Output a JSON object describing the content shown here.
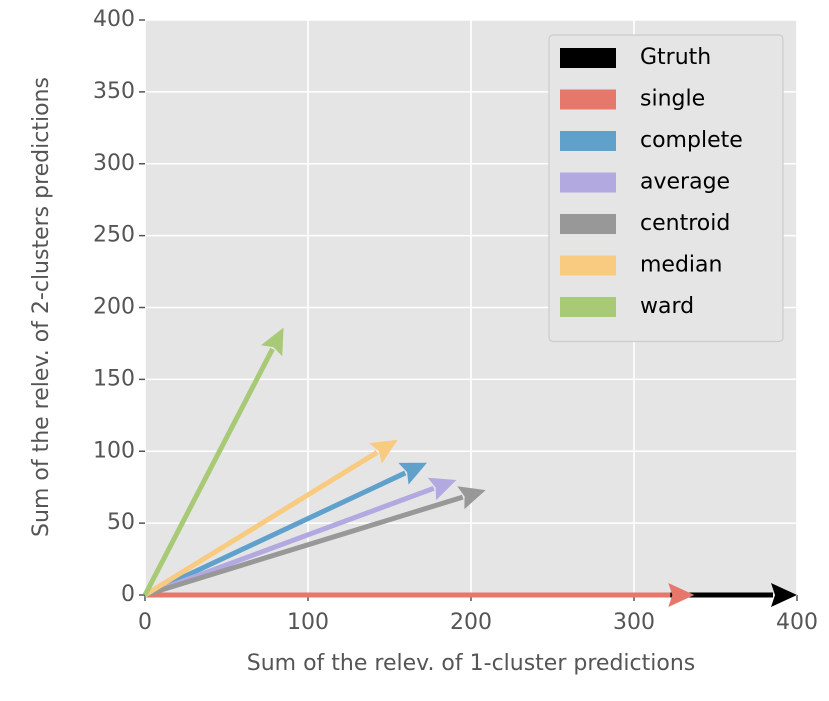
{
  "chart_data": {
    "type": "quiver",
    "xlabel": "Sum of the relev. of 1-cluster predictions",
    "ylabel": "Sum of the relev. of 2-clusters predictions",
    "xlim": [
      0,
      400
    ],
    "ylim": [
      0,
      400
    ],
    "xticks": [
      0,
      100,
      200,
      300,
      400
    ],
    "yticks": [
      0,
      50,
      100,
      150,
      200,
      250,
      300,
      350,
      400
    ],
    "grid": true,
    "legend": "upper right",
    "series": [
      {
        "name": "Gtruth",
        "color": "#000000",
        "u": [
          400
        ],
        "v": [
          0
        ]
      },
      {
        "name": "single",
        "color": "#e5786a",
        "u": [
          337
        ],
        "v": [
          0
        ]
      },
      {
        "name": "complete",
        "color": "#5fa1cb",
        "u": [
          173
        ],
        "v": [
          92
        ]
      },
      {
        "name": "average",
        "color": "#b1a9df",
        "u": [
          191
        ],
        "v": [
          80
        ]
      },
      {
        "name": "centroid",
        "color": "#989898",
        "u": [
          209
        ],
        "v": [
          73
        ]
      },
      {
        "name": "median",
        "color": "#f9cb80",
        "u": [
          155
        ],
        "v": [
          108
        ]
      },
      {
        "name": "ward",
        "color": "#a8c975",
        "u": [
          85
        ],
        "v": [
          186
        ]
      }
    ]
  }
}
